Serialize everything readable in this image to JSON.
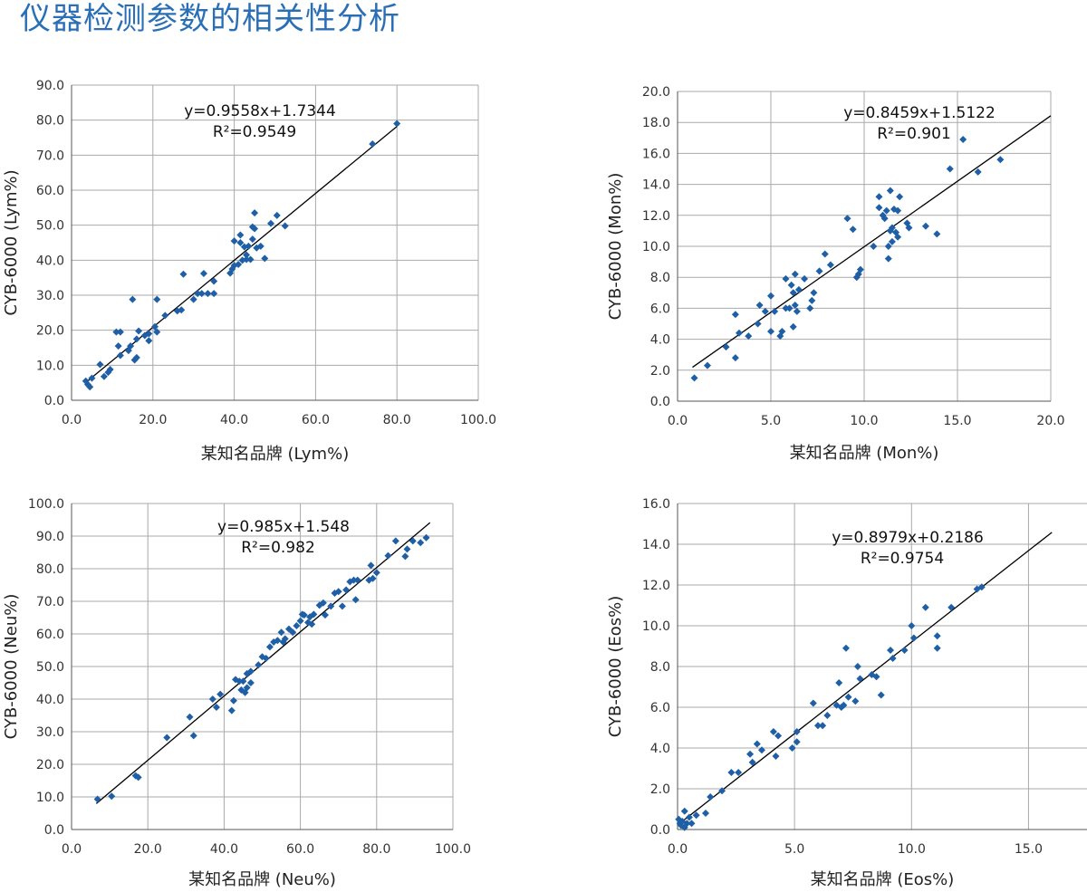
{
  "page": {
    "title": "仪器检测参数的相关性分析"
  },
  "style": {
    "point_color": "#1f5fa6",
    "grid_color": "#a9a9a9",
    "title_color": "#2a6fb6",
    "line_color": "#000000"
  },
  "chart_data": [
    {
      "type": "scatter",
      "xlabel": "某知名品牌 (Lym%)",
      "ylabel": "CYB-6000 (Lym%)",
      "xlim": [
        0,
        100
      ],
      "ylim": [
        0,
        90
      ],
      "xticks": [
        0,
        20,
        40,
        60,
        80,
        100
      ],
      "yticks": [
        0,
        10,
        20,
        30,
        40,
        50,
        60,
        70,
        80,
        90
      ],
      "xtick_labels": [
        "0.0",
        "20.0",
        "40.0",
        "60.0",
        "80.0",
        "100.0"
      ],
      "ytick_labels": [
        "0.0",
        "10.0",
        "20.0",
        "30.0",
        "40.0",
        "50.0",
        "60.0",
        "70.0",
        "80.0",
        "90.0"
      ],
      "equation": "y=0.9558x+1.7344",
      "r2": "R²=0.9549",
      "trendline": {
        "slope": 0.9558,
        "intercept": 1.7344,
        "x_range": [
          4,
          80
        ]
      },
      "points": [
        [
          3.5,
          5.5
        ],
        [
          4,
          4.5
        ],
        [
          4.5,
          3.8
        ],
        [
          5,
          6.3
        ],
        [
          7,
          10.2
        ],
        [
          8,
          6.8
        ],
        [
          9,
          8
        ],
        [
          9.5,
          8.8
        ],
        [
          11,
          19.5
        ],
        [
          12,
          19.5
        ],
        [
          11.5,
          15.5
        ],
        [
          12,
          12.8
        ],
        [
          14,
          14.2
        ],
        [
          14.5,
          15.5
        ],
        [
          15,
          28.8
        ],
        [
          15.5,
          11.5
        ],
        [
          16,
          12.2
        ],
        [
          16.5,
          19.8
        ],
        [
          16,
          17.5
        ],
        [
          18,
          18.5
        ],
        [
          19,
          17
        ],
        [
          19,
          19
        ],
        [
          20.5,
          21
        ],
        [
          21,
          19.5
        ],
        [
          21,
          28.8
        ],
        [
          23,
          24.2
        ],
        [
          26,
          25.5
        ],
        [
          27,
          25.8
        ],
        [
          27.5,
          36
        ],
        [
          30,
          28.8
        ],
        [
          31,
          30.5
        ],
        [
          32,
          30.5
        ],
        [
          32.5,
          36.2
        ],
        [
          33.5,
          30.5
        ],
        [
          35,
          30.5
        ],
        [
          35,
          34
        ],
        [
          39,
          36.3
        ],
        [
          39.5,
          37.5
        ],
        [
          40,
          38.5
        ],
        [
          40,
          45.5
        ],
        [
          41,
          38.8
        ],
        [
          41.5,
          47.2
        ],
        [
          41.5,
          45
        ],
        [
          42,
          40
        ],
        [
          42.5,
          43.8
        ],
        [
          43,
          41.5
        ],
        [
          43.5,
          44
        ],
        [
          43,
          40.2
        ],
        [
          44,
          40.2
        ],
        [
          44.5,
          46
        ],
        [
          44.5,
          49.5
        ],
        [
          45,
          49
        ],
        [
          45,
          53.5
        ],
        [
          45.5,
          43.5
        ],
        [
          46.5,
          44
        ],
        [
          47.5,
          40.5
        ],
        [
          49,
          50.5
        ],
        [
          50.5,
          52.8
        ],
        [
          52.5,
          49.8
        ],
        [
          74,
          73.2
        ],
        [
          80,
          79
        ]
      ]
    },
    {
      "type": "scatter",
      "xlabel": "某知名品牌 (Mon%)",
      "ylabel": "CYB-6000 (Mon%)",
      "xlim": [
        0,
        20
      ],
      "ylim": [
        0,
        20
      ],
      "xticks": [
        0,
        5,
        10,
        15,
        20
      ],
      "yticks": [
        0,
        2,
        4,
        6,
        8,
        10,
        12,
        14,
        16,
        18,
        20
      ],
      "xtick_labels": [
        "0.0",
        "5.0",
        "10.0",
        "15.0",
        "20.0"
      ],
      "ytick_labels": [
        "0.0",
        "2.0",
        "4.0",
        "6.0",
        "8.0",
        "10.0",
        "12.0",
        "14.0",
        "16.0",
        "18.0",
        "20.0"
      ],
      "equation": "y=0.8459x+1.5122",
      "r2": "R²=0.901",
      "trendline": {
        "slope": 0.8459,
        "intercept": 1.5122,
        "x_range": [
          0.8,
          20
        ]
      },
      "points": [
        [
          0.9,
          1.5
        ],
        [
          1.6,
          2.3
        ],
        [
          2.6,
          3.5
        ],
        [
          3.1,
          2.8
        ],
        [
          3.1,
          5.6
        ],
        [
          3.3,
          4.4
        ],
        [
          3.8,
          4.2
        ],
        [
          4.3,
          5
        ],
        [
          4.4,
          6.2
        ],
        [
          4.7,
          5.8
        ],
        [
          5,
          6.8
        ],
        [
          5,
          4.5
        ],
        [
          5.2,
          5.8
        ],
        [
          5.5,
          4.2
        ],
        [
          5.6,
          4.5
        ],
        [
          5.8,
          6
        ],
        [
          5.8,
          7.9
        ],
        [
          6,
          6
        ],
        [
          6.1,
          7.5
        ],
        [
          6.2,
          4.8
        ],
        [
          6.2,
          7
        ],
        [
          6.3,
          6.2
        ],
        [
          6.3,
          8.2
        ],
        [
          6.4,
          5.8
        ],
        [
          6.5,
          7.2
        ],
        [
          6.8,
          7.9
        ],
        [
          7.1,
          6
        ],
        [
          7.2,
          6.5
        ],
        [
          7.3,
          7
        ],
        [
          7.6,
          8.4
        ],
        [
          7.9,
          9.5
        ],
        [
          8.2,
          8.8
        ],
        [
          9.1,
          11.8
        ],
        [
          9.4,
          11.1
        ],
        [
          9.6,
          8
        ],
        [
          9.7,
          8.2
        ],
        [
          9.8,
          8.5
        ],
        [
          10.5,
          10
        ],
        [
          10.8,
          13.2
        ],
        [
          10.8,
          12.5
        ],
        [
          11,
          12
        ],
        [
          11.1,
          11.8
        ],
        [
          11.2,
          12.3
        ],
        [
          11.3,
          10
        ],
        [
          11.3,
          9.2
        ],
        [
          11.4,
          13.6
        ],
        [
          11.4,
          11
        ],
        [
          11.5,
          11.2
        ],
        [
          11.5,
          10.3
        ],
        [
          11.6,
          12.4
        ],
        [
          11.7,
          10.9
        ],
        [
          11.8,
          10.6
        ],
        [
          11.9,
          13.2
        ],
        [
          11.8,
          12.3
        ],
        [
          12.3,
          11.5
        ],
        [
          12.4,
          11.2
        ],
        [
          13.3,
          11.3
        ],
        [
          13.9,
          10.8
        ],
        [
          14.6,
          15
        ],
        [
          15.3,
          16.9
        ],
        [
          16.1,
          14.8
        ],
        [
          17.3,
          15.6
        ]
      ]
    },
    {
      "type": "scatter",
      "xlabel": "某知名品牌 (Neu%)",
      "ylabel": "CYB-6000 (Neu%)",
      "xlim": [
        0,
        100
      ],
      "ylim": [
        0,
        100
      ],
      "xticks": [
        0,
        20,
        40,
        60,
        80,
        100
      ],
      "yticks": [
        0,
        10,
        20,
        30,
        40,
        50,
        60,
        70,
        80,
        90,
        100
      ],
      "xtick_labels": [
        "0.0",
        "20.0",
        "40.0",
        "60.0",
        "80.0",
        "100.0"
      ],
      "ytick_labels": [
        "0.0",
        "10.0",
        "20.0",
        "30.0",
        "40.0",
        "50.0",
        "60.0",
        "70.0",
        "80.0",
        "90.0",
        "100.0"
      ],
      "equation": "y=0.985x+1.548",
      "r2": "R²=0.982",
      "trendline": {
        "slope": 0.985,
        "intercept": 1.548,
        "x_range": [
          6.5,
          94
        ]
      },
      "points": [
        [
          6.8,
          9.3
        ],
        [
          10.5,
          10.2
        ],
        [
          16.8,
          16.5
        ],
        [
          17.5,
          16
        ],
        [
          25,
          28.2
        ],
        [
          31,
          34.5
        ],
        [
          32,
          28.8
        ],
        [
          37,
          40
        ],
        [
          38,
          37.5
        ],
        [
          39,
          41.5
        ],
        [
          42,
          36.5
        ],
        [
          42.5,
          39.5
        ],
        [
          43,
          46
        ],
        [
          44,
          45.5
        ],
        [
          45,
          45.5
        ],
        [
          44.5,
          42.8
        ],
        [
          45.5,
          42
        ],
        [
          46,
          43.5
        ],
        [
          46,
          47.8
        ],
        [
          47,
          48.5
        ],
        [
          47,
          45
        ],
        [
          49,
          50.5
        ],
        [
          50,
          53
        ],
        [
          51,
          52.5
        ],
        [
          52,
          56
        ],
        [
          53,
          57.5
        ],
        [
          54,
          58
        ],
        [
          55,
          60.5
        ],
        [
          55.5,
          57.5
        ],
        [
          56,
          58.5
        ],
        [
          57,
          61.5
        ],
        [
          58,
          60.5
        ],
        [
          59,
          62.5
        ],
        [
          60,
          64
        ],
        [
          60.5,
          66
        ],
        [
          61,
          65.8
        ],
        [
          62,
          63.5
        ],
        [
          62.5,
          65.2
        ],
        [
          63,
          63
        ],
        [
          63.5,
          66
        ],
        [
          65,
          68.8
        ],
        [
          66,
          69.5
        ],
        [
          66.5,
          65.8
        ],
        [
          68,
          68.5
        ],
        [
          69,
          72.5
        ],
        [
          70,
          73
        ],
        [
          71,
          68.5
        ],
        [
          72,
          73.5
        ],
        [
          73,
          76
        ],
        [
          74,
          76.5
        ],
        [
          74.5,
          70.5
        ],
        [
          75,
          76.5
        ],
        [
          78,
          76.5
        ],
        [
          78.5,
          81
        ],
        [
          79,
          77
        ],
        [
          80,
          78.8
        ],
        [
          83,
          84
        ],
        [
          85,
          88.5
        ],
        [
          87.5,
          83.8
        ],
        [
          88,
          86
        ],
        [
          89.5,
          88.5
        ],
        [
          91.5,
          88
        ],
        [
          93,
          89.5
        ]
      ]
    },
    {
      "type": "scatter",
      "xlabel": "某知名品牌 (Eos%)",
      "ylabel": "CYB-6000 (Eos%)",
      "xlim": [
        0,
        17.5
      ],
      "ylim": [
        0,
        16
      ],
      "xticks": [
        0,
        5,
        10,
        15
      ],
      "yticks": [
        0,
        2,
        4,
        6,
        8,
        10,
        12,
        14,
        16
      ],
      "xtick_labels": [
        "0.0",
        "5.0",
        "10.0",
        "15.0"
      ],
      "ytick_labels": [
        "0.0",
        "2.0",
        "4.0",
        "6.0",
        "8.0",
        "10.0",
        "12.0",
        "14.0",
        "16.0"
      ],
      "equation": "y=0.8979x+0.2186",
      "r2": "R²=0.9754",
      "trendline": {
        "slope": 0.8979,
        "intercept": 0.2186,
        "x_range": [
          0,
          16
        ]
      },
      "points": [
        [
          0.05,
          0.5
        ],
        [
          0.1,
          0.3
        ],
        [
          0.15,
          0.2
        ],
        [
          0.2,
          0.4
        ],
        [
          0.3,
          0.9
        ],
        [
          0.3,
          0.1
        ],
        [
          0.4,
          0.3
        ],
        [
          0.5,
          0.6
        ],
        [
          0.6,
          0.3
        ],
        [
          0.8,
          0.7
        ],
        [
          1.2,
          0.8
        ],
        [
          1.4,
          1.6
        ],
        [
          1.9,
          1.9
        ],
        [
          2.3,
          2.8
        ],
        [
          2.6,
          2.8
        ],
        [
          3.1,
          3.7
        ],
        [
          3.2,
          3.3
        ],
        [
          3.4,
          4.2
        ],
        [
          3.6,
          3.9
        ],
        [
          4.1,
          4.8
        ],
        [
          4.2,
          3.6
        ],
        [
          4.3,
          4.6
        ],
        [
          4.9,
          4
        ],
        [
          5.1,
          4.8
        ],
        [
          5.1,
          4.3
        ],
        [
          5.8,
          6.2
        ],
        [
          6,
          5.1
        ],
        [
          6.2,
          5.1
        ],
        [
          6.4,
          5.6
        ],
        [
          6.8,
          6.1
        ],
        [
          6.9,
          7.2
        ],
        [
          7,
          6
        ],
        [
          7.1,
          6.1
        ],
        [
          7.2,
          8.9
        ],
        [
          7.3,
          6.5
        ],
        [
          7.6,
          6.3
        ],
        [
          7.7,
          8
        ],
        [
          7.8,
          7.4
        ],
        [
          8.3,
          7.6
        ],
        [
          8.5,
          7.5
        ],
        [
          8.7,
          6.6
        ],
        [
          9.1,
          8.8
        ],
        [
          9.2,
          8.4
        ],
        [
          9.7,
          8.8
        ],
        [
          10,
          10
        ],
        [
          10.1,
          9.4
        ],
        [
          10.6,
          10.9
        ],
        [
          11.1,
          9.5
        ],
        [
          11.1,
          8.9
        ],
        [
          11.7,
          10.9
        ],
        [
          12.8,
          11.8
        ],
        [
          13,
          11.9
        ]
      ]
    }
  ]
}
